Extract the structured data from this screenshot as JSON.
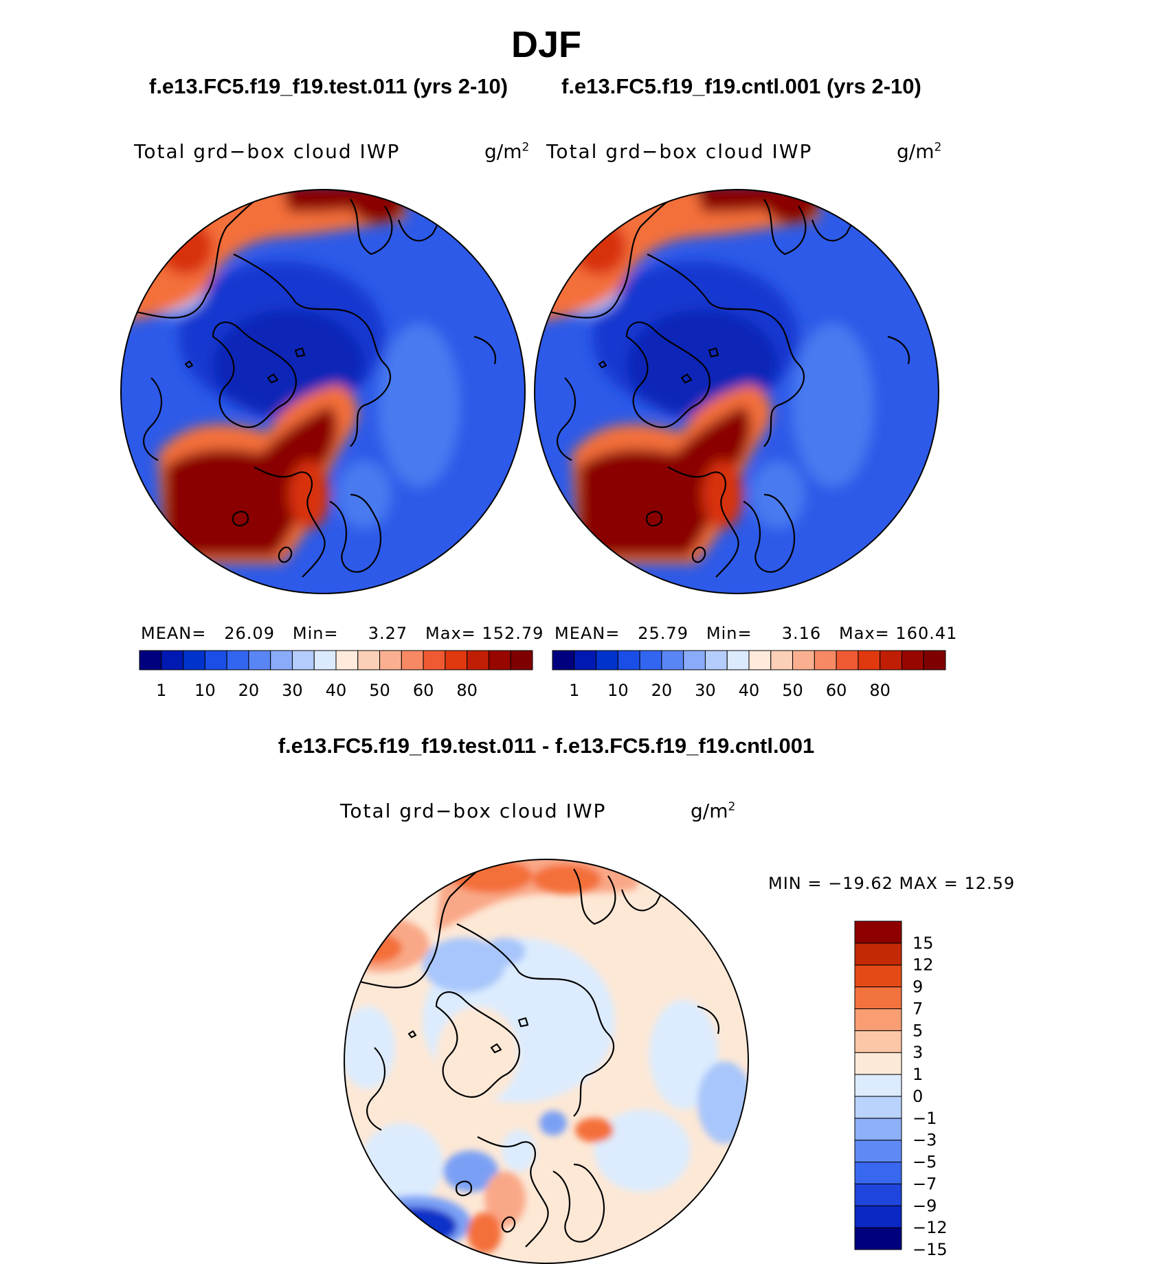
{
  "figure": {
    "title": "DJF",
    "case_titles": [
      "f.e13.FC5.f19_f19.test.011 (yrs 2-10)",
      "f.e13.FC5.f19_f19.cntl.001 (yrs 2-10)"
    ],
    "diff_title": "f.e13.FC5.f19_f19.test.011 - f.e13.FC5.f19_f19.cntl.001"
  },
  "panels": [
    {
      "variable": "Total grd−box cloud IWP",
      "units_base": "g/m",
      "units_exp": "2",
      "mean_label": "MEAN=",
      "mean": "26.09",
      "min_label": "Min=",
      "min": "3.27",
      "max_label": "Max=",
      "max": "152.79"
    },
    {
      "variable": "Total grd−box cloud IWP",
      "units_base": "g/m",
      "units_exp": "2",
      "mean_label": "MEAN=",
      "mean": "25.79",
      "min_label": "Min=",
      "min": "3.16",
      "max_label": "Max=",
      "max": "160.41"
    }
  ],
  "difference": {
    "variable": "Total grd−box cloud IWP",
    "units_base": "g/m",
    "units_exp": "2",
    "min_max_text": "MIN = −19.62 MAX =  12.59"
  },
  "colorbar_main": {
    "colors": [
      "#00007f",
      "#0019b2",
      "#0033cc",
      "#1a4ee6",
      "#3366f0",
      "#5a86f5",
      "#8aabfa",
      "#b4cdfc",
      "#dceafe",
      "#ffeadc",
      "#fcd0b8",
      "#fab090",
      "#f78a64",
      "#f05a32",
      "#e0380f",
      "#c01f05",
      "#980600",
      "#7f0000"
    ],
    "tick_labels": [
      "1",
      "10",
      "20",
      "30",
      "40",
      "50",
      "60",
      "80"
    ],
    "tick_positions": [
      1,
      3,
      5,
      7,
      9,
      11,
      13,
      15
    ]
  },
  "colorbar_diff": {
    "colors": [
      "#00007f",
      "#0b28c4",
      "#1e45dc",
      "#3868ee",
      "#5f8af5",
      "#8db0fa",
      "#b9d3fd",
      "#dcecfe",
      "#fde9d8",
      "#fbc7a6",
      "#f89e72",
      "#f3733f",
      "#e44a16",
      "#c42906",
      "#8e0000"
    ],
    "tick_labels": [
      "15",
      "12",
      "9",
      "7",
      "5",
      "3",
      "1",
      "0",
      "−1",
      "−3",
      "−5",
      "−7",
      "−9",
      "−12",
      "−15"
    ]
  },
  "map_palette": {
    "blue_deep": "#0a28b8",
    "blue_dark": "#1638d0",
    "blue_mid": "#2d5ae8",
    "blue_light": "#4a7af0",
    "pale_blue": "#a8c6fb",
    "red_dark": "#8a0000",
    "red_mid": "#d8320a",
    "orange": "#f4703a",
    "salmon": "#f9a887",
    "peach": "#fde8d6",
    "ice": "#dcecfe",
    "diff_blue": "#7aa0f5",
    "diff_navy": "#1030c8"
  }
}
